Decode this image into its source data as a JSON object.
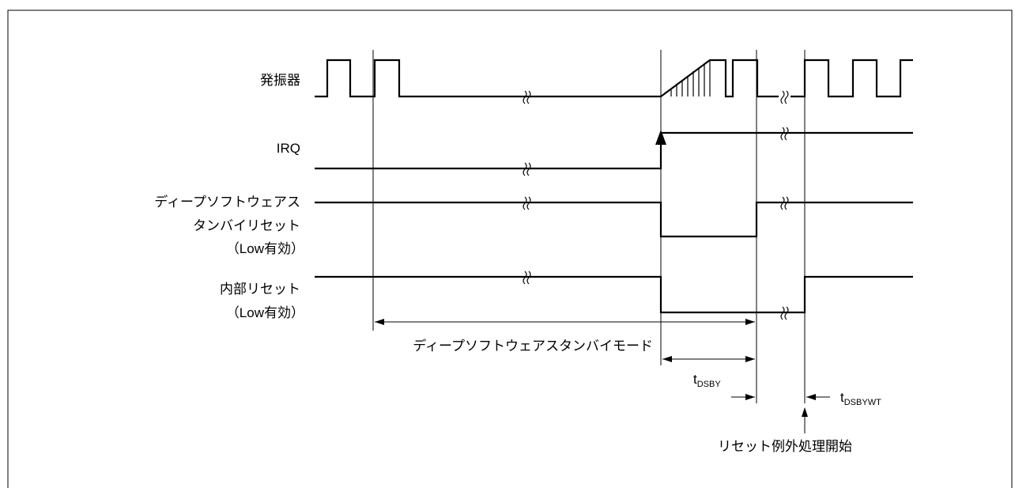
{
  "signals": {
    "osc": {
      "label": "発振器"
    },
    "irq": {
      "label": "IRQ"
    },
    "deep_reset": {
      "label_line1": "ディープソフトウェアス",
      "label_line2": "タンバイリセット",
      "label_line3": "（Low有効）"
    },
    "internal_reset": {
      "label_line1": "内部リセット",
      "label_line2": "（Low有効）"
    }
  },
  "annotations": {
    "mode": "ディープソフトウェアスタンバイモード",
    "t_dsby": {
      "main": "t",
      "sub": "DSBY"
    },
    "t_dsbywt": {
      "main": "t",
      "sub": "DSBYWT"
    },
    "reset_start": "リセット例外処理開始"
  }
}
